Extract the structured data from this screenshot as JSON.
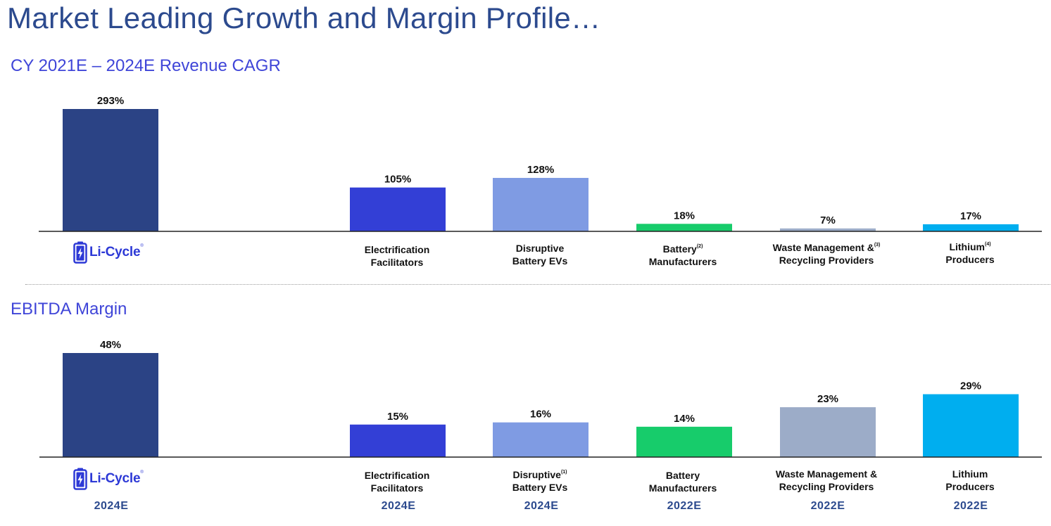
{
  "title": "Market Leading Growth and Margin Profile…",
  "sections": [
    {
      "title": "CY 2021E – 2024E Revenue CAGR"
    },
    {
      "title": "EBITDA Margin"
    }
  ],
  "logo": {
    "text": "Li-Cycle",
    "trademark": "®"
  },
  "colors": {
    "licycle": "#2b4385",
    "electrification": "#333fd6",
    "disruptive": "#7f9be3",
    "battery": "#17cc6b",
    "waste": "#9cacc8",
    "lithium": "#00aeef",
    "title": "#2c4a8e",
    "section": "#3f45d8"
  },
  "categories_growth": [
    {
      "line1": "Electrification",
      "line2": "Facilitators",
      "note": ""
    },
    {
      "line1": "Disruptive",
      "line2": "Battery EVs",
      "note": ""
    },
    {
      "line1": "Battery",
      "line2": "Manufacturers",
      "note": "(2)"
    },
    {
      "line1": "Waste Management &",
      "line2": "Recycling Providers",
      "note": "(3)"
    },
    {
      "line1": "Lithium",
      "line2": "Producers",
      "note": "(4)"
    }
  ],
  "categories_margin": [
    {
      "line1": "Electrification",
      "line2": "Facilitators",
      "note": ""
    },
    {
      "line1": "Disruptive",
      "line2": "Battery EVs",
      "note": "(1)"
    },
    {
      "line1": "Battery",
      "line2": "Manufacturers",
      "note": ""
    },
    {
      "line1": "Waste Management &",
      "line2": "Recycling Providers",
      "note": ""
    },
    {
      "line1": "Lithium",
      "line2": "Producers",
      "note": ""
    }
  ],
  "years": [
    "2024E",
    "2024E",
    "2024E",
    "2022E",
    "2022E",
    "2022E"
  ],
  "chart_data": [
    {
      "type": "bar",
      "title": "CY 2021E – 2024E Revenue CAGR",
      "categories": [
        "Li-Cycle",
        "Electrification Facilitators",
        "Disruptive Battery EVs",
        "Battery Manufacturers",
        "Waste Management & Recycling Providers",
        "Lithium Producers"
      ],
      "values": [
        293,
        105,
        128,
        18,
        7,
        17
      ],
      "value_labels": [
        "293%",
        "105%",
        "128%",
        "18%",
        "7%",
        "17%"
      ],
      "unit": "%",
      "ylim": [
        0,
        300
      ],
      "grid": false,
      "legend": "none"
    },
    {
      "type": "bar",
      "title": "EBITDA Margin",
      "categories": [
        "Li-Cycle",
        "Electrification Facilitators",
        "Disruptive Battery EVs",
        "Battery Manufacturers",
        "Waste Management & Recycling Providers",
        "Lithium Producers"
      ],
      "values": [
        48,
        15,
        16,
        14,
        23,
        29
      ],
      "value_labels": [
        "48%",
        "15%",
        "16%",
        "14%",
        "23%",
        "29%"
      ],
      "unit": "%",
      "ylim": [
        0,
        50
      ],
      "grid": false,
      "legend": "none"
    }
  ]
}
